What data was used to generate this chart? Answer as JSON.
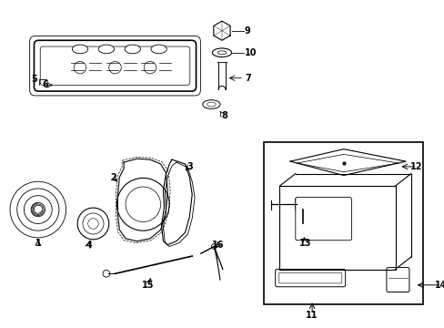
{
  "bg_color": "#ffffff",
  "line_color": "#000000",
  "fig_width": 4.89,
  "fig_height": 3.6,
  "dpi": 100,
  "font_size": 7
}
